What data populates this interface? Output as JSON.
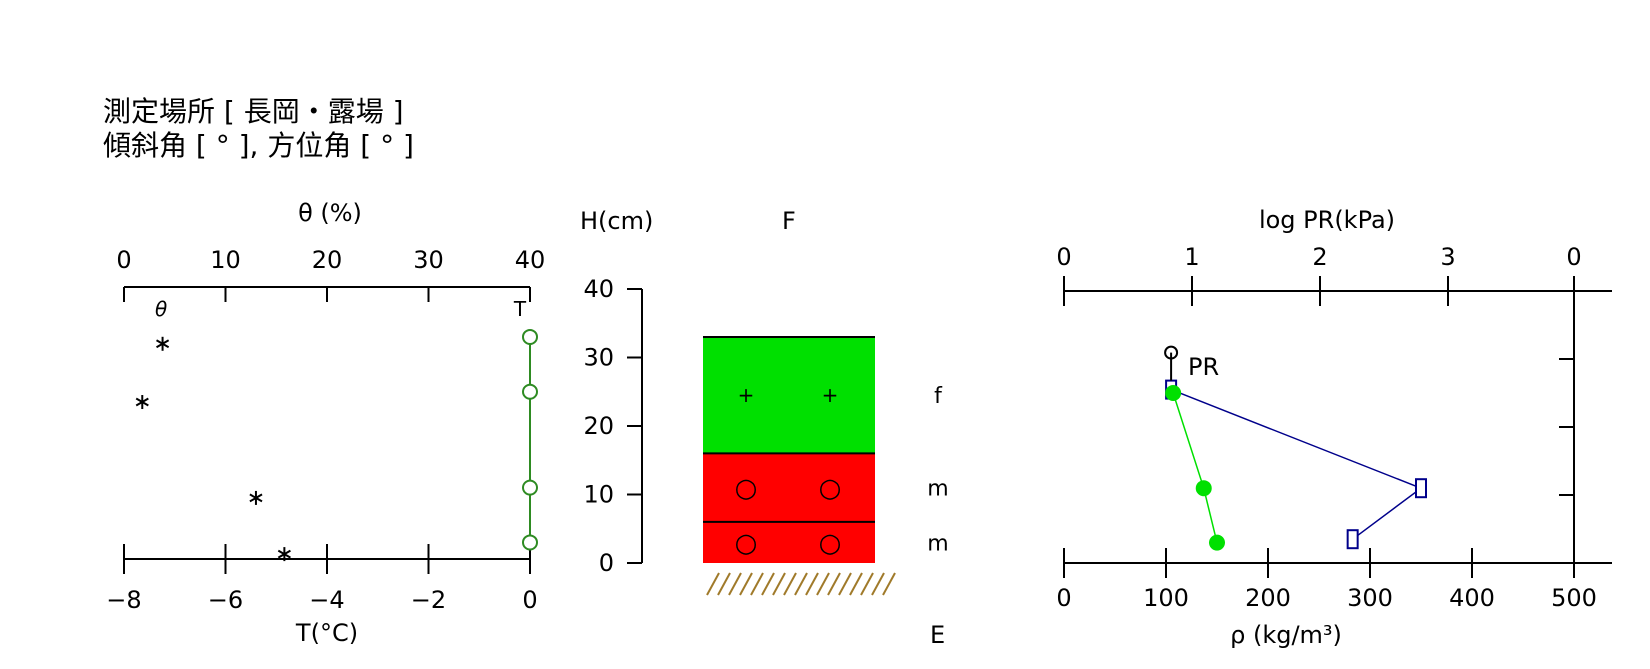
{
  "header": {
    "line1": "測定場所 [ 長岡・露場 ]",
    "line2": "傾斜角 [ ° ], 方位角 [ ° ]"
  },
  "chart_data": [
    {
      "type": "scatter",
      "panel": "left",
      "top_axis": {
        "label": "θ (%)",
        "ticks": [
          "0",
          "10",
          "20",
          "30",
          "40"
        ],
        "range": [
          0,
          40
        ]
      },
      "bottom_axis": {
        "label": "T(°C)",
        "ticks": [
          "−8",
          "−6",
          "−4",
          "−2",
          "0"
        ],
        "range": [
          -8,
          0
        ]
      },
      "series_labels": {
        "theta": "θ",
        "temperature": "T"
      },
      "theta_points": [
        {
          "value": 3.8,
          "h": 32
        },
        {
          "value": 1.8,
          "h": 23.5
        },
        {
          "value": 13,
          "h": 9.5
        },
        {
          "value": 15.8,
          "h": 1.3
        }
      ],
      "temperature_points": [
        {
          "value": 0,
          "h": 33
        },
        {
          "value": 0,
          "h": 25
        },
        {
          "value": 0,
          "h": 11
        },
        {
          "value": 0,
          "h": 3
        }
      ],
      "colors": {
        "temperature": "#2e8b22",
        "theta": "#000000"
      }
    },
    {
      "type": "stratigraphy",
      "panel": "middle",
      "y_axis": {
        "label": "H(cm)",
        "ticks": [
          "0",
          "10",
          "20",
          "30",
          "40"
        ],
        "range": [
          0,
          40
        ]
      },
      "top_label": "F",
      "bottom_label": "E",
      "layers": [
        {
          "bottom": 16,
          "top": 33,
          "grain": "f",
          "symbol": "+",
          "color": "#00e000"
        },
        {
          "bottom": 6,
          "top": 16,
          "grain": "m",
          "symbol": "○",
          "color": "#ff0000"
        },
        {
          "bottom": 0,
          "top": 6,
          "grain": "m",
          "symbol": "○",
          "color": "#ff0000"
        }
      ],
      "ground_color": "#a07a2a"
    },
    {
      "type": "line",
      "panel": "right",
      "top_axis": {
        "label": "log PR(kPa)",
        "ticks": [
          "0",
          "1",
          "2",
          "3",
          "0"
        ]
      },
      "bottom_axis": {
        "label": "ρ (kg/m³)",
        "ticks": [
          "0",
          "100",
          "200",
          "300",
          "400",
          "500"
        ],
        "range": [
          0,
          500
        ]
      },
      "pr_label": "PR",
      "series": [
        {
          "name": "PR",
          "color": "#00008b",
          "points": [
            {
              "x": 105,
              "h": 25.5
            },
            {
              "x": 350,
              "h": 11
            },
            {
              "x": 283,
              "h": 3.5
            }
          ],
          "marker": "square"
        },
        {
          "name": "density",
          "color": "#00e000",
          "points": [
            {
              "x": 107,
              "h": 25
            },
            {
              "x": 137,
              "h": 11
            },
            {
              "x": 150,
              "h": 3
            }
          ],
          "marker": "dot"
        }
      ],
      "pr_start_marker": {
        "x": 105,
        "h": 30.5
      }
    }
  ]
}
